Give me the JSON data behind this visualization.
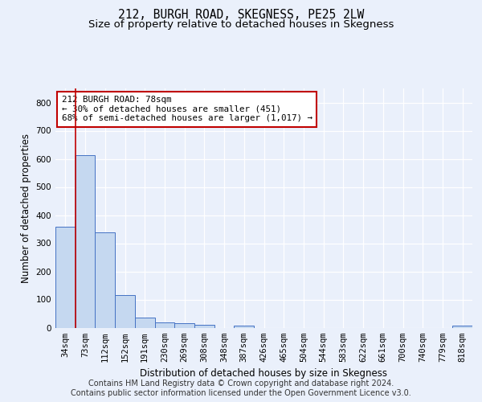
{
  "title": "212, BURGH ROAD, SKEGNESS, PE25 2LW",
  "subtitle": "Size of property relative to detached houses in Skegness",
  "xlabel": "Distribution of detached houses by size in Skegness",
  "ylabel": "Number of detached properties",
  "bin_labels": [
    "34sqm",
    "73sqm",
    "112sqm",
    "152sqm",
    "191sqm",
    "230sqm",
    "269sqm",
    "308sqm",
    "348sqm",
    "387sqm",
    "426sqm",
    "465sqm",
    "504sqm",
    "544sqm",
    "583sqm",
    "622sqm",
    "661sqm",
    "700sqm",
    "740sqm",
    "779sqm",
    "818sqm"
  ],
  "bar_values": [
    358,
    612,
    338,
    115,
    36,
    20,
    15,
    10,
    0,
    8,
    0,
    0,
    0,
    0,
    0,
    0,
    0,
    0,
    0,
    0,
    8
  ],
  "bar_color": "#c5d8f0",
  "bar_edge_color": "#4472c4",
  "vline_color": "#c00000",
  "annotation_text": "212 BURGH ROAD: 78sqm\n← 30% of detached houses are smaller (451)\n68% of semi-detached houses are larger (1,017) →",
  "annotation_box_color": "#ffffff",
  "annotation_box_edge": "#c00000",
  "ylim": [
    0,
    850
  ],
  "yticks": [
    0,
    100,
    200,
    300,
    400,
    500,
    600,
    700,
    800
  ],
  "footer_text": "Contains HM Land Registry data © Crown copyright and database right 2024.\nContains public sector information licensed under the Open Government Licence v3.0.",
  "bg_color": "#eaf0fb",
  "plot_bg_color": "#eaf0fb",
  "grid_color": "#ffffff",
  "title_fontsize": 10.5,
  "subtitle_fontsize": 9.5,
  "axis_label_fontsize": 8.5,
  "tick_fontsize": 7.5,
  "footer_fontsize": 7.0
}
